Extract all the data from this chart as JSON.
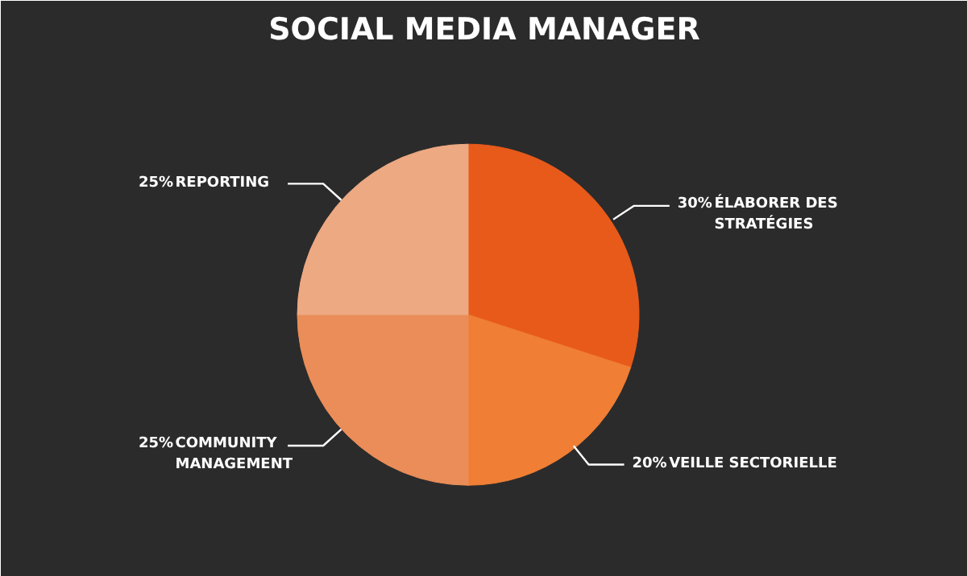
{
  "chart_data": {
    "type": "pie",
    "title": "SOCIAL MEDIA MANAGER",
    "categories": [
      "ÉLABORER DES STRATÉGIES",
      "VEILLE SECTORIELLE",
      "COMMUNITY MANAGEMENT",
      "REPORTING"
    ],
    "values": [
      30,
      20,
      25,
      25
    ],
    "colors": [
      "#e85a1a",
      "#f07f35",
      "#ea8d58",
      "#eda982"
    ],
    "value_labels": [
      "30%",
      "20%",
      "25%",
      "25%"
    ],
    "legend": false
  }
}
